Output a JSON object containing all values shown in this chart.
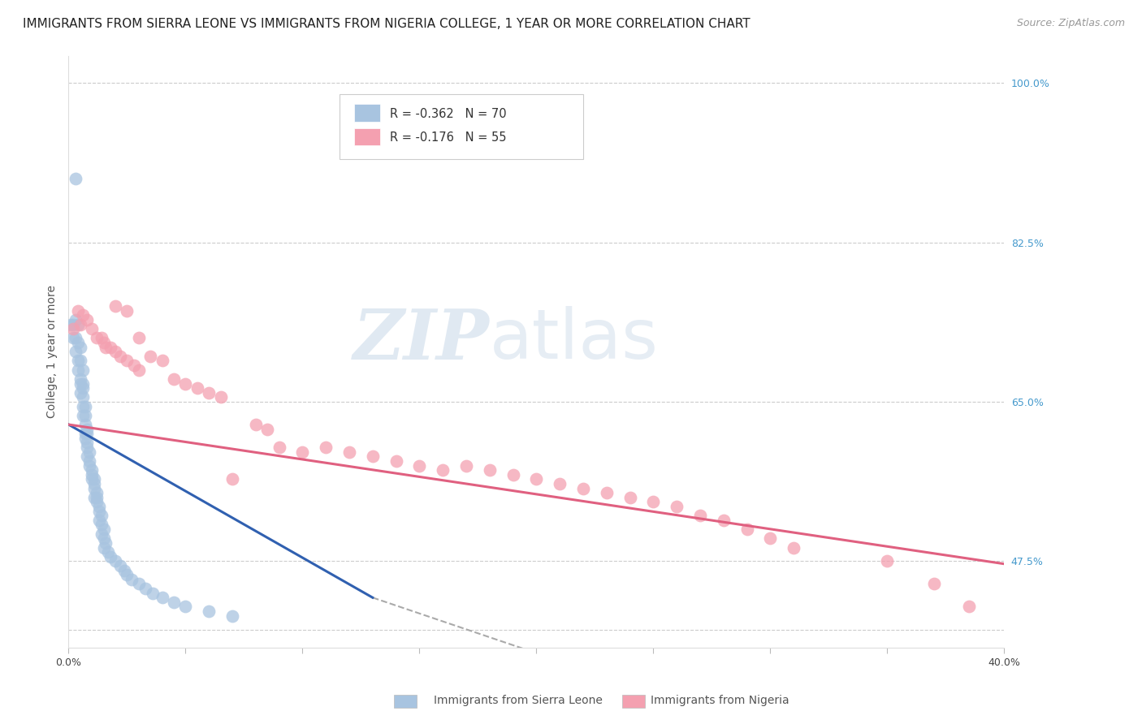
{
  "title": "IMMIGRANTS FROM SIERRA LEONE VS IMMIGRANTS FROM NIGERIA COLLEGE, 1 YEAR OR MORE CORRELATION CHART",
  "source": "Source: ZipAtlas.com",
  "ylabel": "College, 1 year or more",
  "xlim": [
    0.0,
    0.4
  ],
  "ylim": [
    0.38,
    1.03
  ],
  "yticks_right": [
    1.0,
    0.825,
    0.65,
    0.475
  ],
  "ytick_labels_right": [
    "100.0%",
    "82.5%",
    "65.0%",
    "47.5%"
  ],
  "xticks": [
    0.0,
    0.05,
    0.1,
    0.15,
    0.2,
    0.25,
    0.3,
    0.35,
    0.4
  ],
  "xtick_labels": [
    "0.0%",
    "",
    "",
    "",
    "",
    "",
    "",
    "",
    "40.0%"
  ],
  "grid_yticks": [
    1.0,
    0.825,
    0.65,
    0.475,
    0.4
  ],
  "grid_color": "#cccccc",
  "background_color": "#ffffff",
  "sierra_leone_color": "#a8c4e0",
  "nigeria_color": "#f4a0b0",
  "sierra_leone_R": -0.362,
  "sierra_leone_N": 70,
  "nigeria_R": -0.176,
  "nigeria_N": 55,
  "sierra_leone_x": [
    0.003,
    0.001,
    0.002,
    0.003,
    0.004,
    0.002,
    0.003,
    0.004,
    0.005,
    0.003,
    0.004,
    0.005,
    0.006,
    0.004,
    0.005,
    0.005,
    0.006,
    0.006,
    0.005,
    0.006,
    0.007,
    0.006,
    0.007,
    0.006,
    0.007,
    0.008,
    0.007,
    0.008,
    0.007,
    0.008,
    0.008,
    0.009,
    0.008,
    0.009,
    0.009,
    0.01,
    0.01,
    0.011,
    0.01,
    0.011,
    0.011,
    0.012,
    0.011,
    0.012,
    0.012,
    0.013,
    0.013,
    0.014,
    0.013,
    0.014,
    0.015,
    0.014,
    0.015,
    0.016,
    0.015,
    0.017,
    0.018,
    0.02,
    0.022,
    0.024,
    0.025,
    0.027,
    0.03,
    0.033,
    0.036,
    0.04,
    0.045,
    0.05,
    0.06,
    0.07
  ],
  "sierra_leone_y": [
    0.895,
    0.735,
    0.735,
    0.74,
    0.735,
    0.72,
    0.72,
    0.715,
    0.71,
    0.705,
    0.695,
    0.695,
    0.685,
    0.685,
    0.675,
    0.67,
    0.67,
    0.665,
    0.66,
    0.655,
    0.645,
    0.645,
    0.635,
    0.635,
    0.625,
    0.62,
    0.615,
    0.615,
    0.61,
    0.605,
    0.6,
    0.595,
    0.59,
    0.585,
    0.58,
    0.575,
    0.57,
    0.565,
    0.565,
    0.56,
    0.555,
    0.55,
    0.545,
    0.545,
    0.54,
    0.535,
    0.53,
    0.525,
    0.52,
    0.515,
    0.51,
    0.505,
    0.5,
    0.495,
    0.49,
    0.485,
    0.48,
    0.475,
    0.47,
    0.465,
    0.46,
    0.455,
    0.45,
    0.445,
    0.44,
    0.435,
    0.43,
    0.425,
    0.42,
    0.415
  ],
  "nigeria_x": [
    0.002,
    0.004,
    0.005,
    0.006,
    0.008,
    0.01,
    0.012,
    0.014,
    0.015,
    0.016,
    0.018,
    0.02,
    0.022,
    0.025,
    0.028,
    0.03,
    0.02,
    0.025,
    0.03,
    0.035,
    0.04,
    0.045,
    0.05,
    0.055,
    0.06,
    0.065,
    0.07,
    0.08,
    0.085,
    0.09,
    0.1,
    0.11,
    0.12,
    0.13,
    0.14,
    0.15,
    0.16,
    0.17,
    0.18,
    0.19,
    0.2,
    0.21,
    0.22,
    0.23,
    0.24,
    0.25,
    0.26,
    0.27,
    0.28,
    0.29,
    0.3,
    0.31,
    0.35,
    0.37,
    0.385
  ],
  "nigeria_y": [
    0.73,
    0.75,
    0.735,
    0.745,
    0.74,
    0.73,
    0.72,
    0.72,
    0.715,
    0.71,
    0.71,
    0.705,
    0.7,
    0.695,
    0.69,
    0.685,
    0.755,
    0.75,
    0.72,
    0.7,
    0.695,
    0.675,
    0.67,
    0.665,
    0.66,
    0.655,
    0.565,
    0.625,
    0.62,
    0.6,
    0.595,
    0.6,
    0.595,
    0.59,
    0.585,
    0.58,
    0.575,
    0.58,
    0.575,
    0.57,
    0.565,
    0.56,
    0.555,
    0.55,
    0.545,
    0.54,
    0.535,
    0.525,
    0.52,
    0.51,
    0.5,
    0.49,
    0.475,
    0.45,
    0.425
  ],
  "blue_line_x": [
    0.0,
    0.13
  ],
  "blue_line_y": [
    0.625,
    0.435
  ],
  "pink_line_x": [
    0.0,
    0.4
  ],
  "pink_line_y": [
    0.625,
    0.472
  ],
  "dashed_line_x": [
    0.13,
    0.4
  ],
  "dashed_line_y": [
    0.435,
    0.2
  ],
  "blue_line_color": "#3060b0",
  "pink_line_color": "#e06080",
  "dashed_line_color": "#aaaaaa",
  "watermark_zip": "ZIP",
  "watermark_atlas": "atlas",
  "watermark_color_zip": "#c8d8e8",
  "watermark_color_atlas": "#c8d8e8",
  "title_fontsize": 11,
  "source_fontsize": 9,
  "axis_label_fontsize": 10,
  "tick_fontsize": 9,
  "right_tick_color": "#4499cc"
}
